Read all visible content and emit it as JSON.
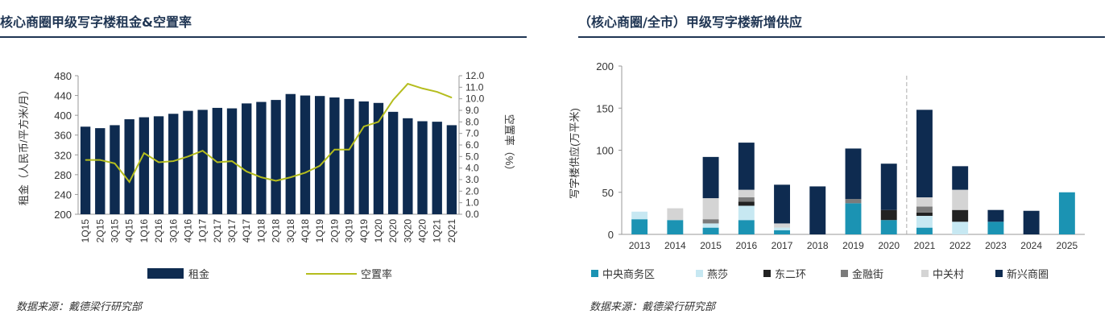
{
  "left": {
    "title": "核心商圈甲级写字楼租金&空置率",
    "source": "数据来源：戴德梁行研究部"
  },
  "right": {
    "title": "（核心商圈/全市）甲级写字楼新增供应",
    "source": "数据来源：戴德梁行研究部"
  },
  "chart_data": [
    {
      "type": "bar",
      "title": "核心商圈甲级写字楼租金&空置率",
      "categories": [
        "1Q15",
        "2Q15",
        "3Q15",
        "4Q15",
        "1Q16",
        "2Q16",
        "3Q16",
        "4Q16",
        "1Q17",
        "2Q17",
        "3Q17",
        "4Q17",
        "1Q18",
        "2Q18",
        "3Q18",
        "4Q18",
        "1Q19",
        "2Q19",
        "3Q19",
        "4Q19",
        "1Q20",
        "2Q20",
        "3Q20",
        "4Q20",
        "1Q21",
        "2Q21"
      ],
      "ylabel": "租金（人民币/平方米/月）",
      "ylim": [
        200,
        480
      ],
      "yticks": [
        200,
        240,
        280,
        320,
        360,
        400,
        440,
        480
      ],
      "y2label": "空置率（%）",
      "y2lim": [
        0,
        12
      ],
      "y2ticks": [
        "0.0",
        "1.0",
        "2.0",
        "3.0",
        "4.0",
        "5.0",
        "6.0",
        "7.0",
        "8.0",
        "9.0",
        "10.0",
        "11.0",
        "12.0"
      ],
      "series": [
        {
          "name": "租金",
          "type": "bar",
          "axis": "left",
          "color": "#0e2b50",
          "values": [
            377,
            374,
            380,
            392,
            396,
            398,
            403,
            409,
            411,
            415,
            414,
            424,
            427,
            431,
            443,
            440,
            439,
            436,
            433,
            428,
            425,
            407,
            394,
            388,
            387,
            380
          ]
        },
        {
          "name": "空置率",
          "type": "line",
          "axis": "right",
          "color": "#b5bd1e",
          "values": [
            4.7,
            4.7,
            4.4,
            2.8,
            5.3,
            4.5,
            4.6,
            5.0,
            5.5,
            4.5,
            4.6,
            3.7,
            3.2,
            2.9,
            3.2,
            3.6,
            4.2,
            5.6,
            5.6,
            7.6,
            8.0,
            9.9,
            11.3,
            10.9,
            10.6,
            10.1
          ]
        }
      ],
      "legend": "bottom",
      "grid": false
    },
    {
      "type": "bar",
      "stacked": true,
      "title": "（核心商圈/全市）甲级写字楼新增供应",
      "categories": [
        "2013",
        "2014",
        "2015",
        "2016",
        "2017",
        "2018",
        "2019",
        "2020",
        "2021",
        "2022",
        "2023",
        "2024",
        "2025"
      ],
      "ylabel": "写字楼供应(万平米)",
      "ylim": [
        0,
        200
      ],
      "yticks": [
        0,
        50,
        100,
        150,
        200
      ],
      "divider_after": "2020",
      "series": [
        {
          "name": "中央商务区",
          "color": "#1b93b3",
          "values": [
            18,
            17,
            8,
            17,
            5,
            0,
            37,
            17,
            8,
            0,
            15,
            0,
            50
          ]
        },
        {
          "name": "燕莎",
          "color": "#c7e8f2",
          "values": [
            9,
            0,
            5,
            17,
            3,
            0,
            0,
            0,
            14,
            15,
            0,
            0,
            0
          ]
        },
        {
          "name": "东二环",
          "color": "#222222",
          "values": [
            0,
            0,
            0,
            5,
            0,
            0,
            0,
            12,
            4,
            14,
            0,
            0,
            0
          ]
        },
        {
          "name": "金融街",
          "color": "#7b7b7b",
          "values": [
            0,
            0,
            5,
            5,
            0,
            0,
            5,
            0,
            7,
            0,
            0,
            0,
            0
          ]
        },
        {
          "name": "中关村",
          "color": "#d4d4d4",
          "values": [
            0,
            14,
            25,
            9,
            5,
            0,
            0,
            0,
            11,
            24,
            0,
            0,
            0
          ]
        },
        {
          "name": "新兴商圈",
          "color": "#0e2b50",
          "values": [
            0,
            0,
            49,
            56,
            46,
            57,
            60,
            55,
            104,
            28,
            14,
            28,
            0
          ]
        }
      ],
      "legend": "bottom",
      "grid": false
    }
  ]
}
